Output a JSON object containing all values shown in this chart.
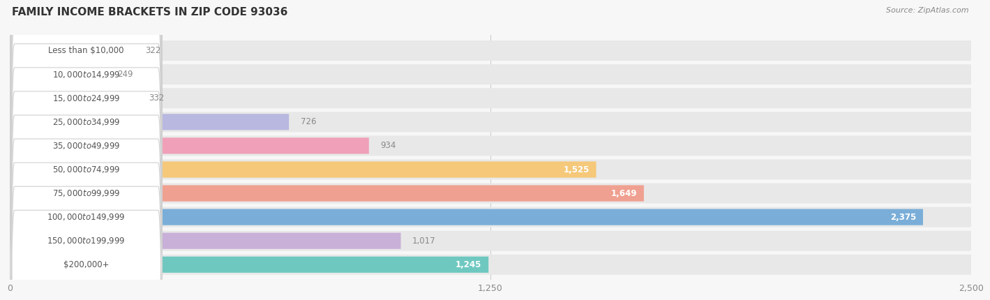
{
  "title": "FAMILY INCOME BRACKETS IN ZIP CODE 93036",
  "source": "Source: ZipAtlas.com",
  "categories": [
    "Less than $10,000",
    "$10,000 to $14,999",
    "$15,000 to $24,999",
    "$25,000 to $34,999",
    "$35,000 to $49,999",
    "$50,000 to $74,999",
    "$75,000 to $99,999",
    "$100,000 to $149,999",
    "$150,000 to $199,999",
    "$200,000+"
  ],
  "values": [
    322,
    249,
    332,
    726,
    934,
    1525,
    1649,
    2375,
    1017,
    1245
  ],
  "bar_colors": [
    "#a8c8e8",
    "#c8aed4",
    "#7ecfc8",
    "#b8b8e0",
    "#f0a0b8",
    "#f5c87a",
    "#f0a090",
    "#7aaed8",
    "#c8b0d8",
    "#6ec8c0"
  ],
  "xlim": [
    0,
    2500
  ],
  "xticks": [
    0,
    1250,
    2500
  ],
  "background_color": "#f7f7f7",
  "bar_bg_color": "#e8e8e8",
  "title_fontsize": 11,
  "label_fontsize": 8.5,
  "value_fontsize": 8.5,
  "inside_value_threshold": 1100
}
